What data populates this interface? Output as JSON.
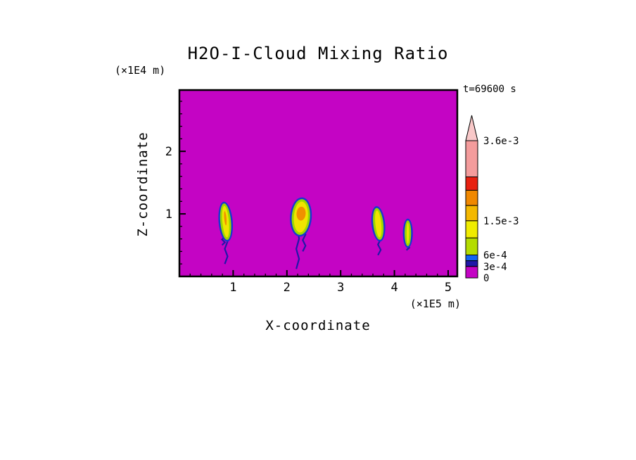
{
  "page_background": "#ffffff",
  "chart_data": {
    "type": "heatmap",
    "title": "H2O-I-Cloud Mixing Ratio",
    "time": "t=69600 s",
    "xlabel": "X-coordinate",
    "ylabel": "Z-coordinate",
    "x_units": "(×1E5 m)",
    "y_units": "(×1E4 m)",
    "xlim": [
      0,
      5.17
    ],
    "ylim": [
      0,
      2.98
    ],
    "x_ticks": [
      1,
      2,
      3,
      4,
      5
    ],
    "y_ticks": [
      1,
      2
    ],
    "x_minor_step": 0.2,
    "y_minor_step": 0.2,
    "background_value": 0,
    "background_color": "#c404c4",
    "feature_colors": {
      "outer": "#1838d0",
      "mid": "#9cd800",
      "core": "#f0e400",
      "hot": "#f09000",
      "tail": "#2018a8"
    },
    "features": [
      {
        "x": 0.86,
        "core_bottom": 0.6,
        "core_top": 1.15,
        "core_width": 0.16,
        "tilt": -5,
        "has_hot": true,
        "tails": [
          {
            "dx": 0.01,
            "bottom": 0.2
          },
          {
            "dx": -0.04,
            "bottom": 0.5
          }
        ]
      },
      {
        "x": 2.26,
        "core_bottom": 0.68,
        "core_top": 1.22,
        "core_width": 0.3,
        "tilt": 4,
        "has_hot": true,
        "tails": [
          {
            "dx": -0.06,
            "bottom": 0.12
          },
          {
            "dx": 0.06,
            "bottom": 0.4
          }
        ]
      },
      {
        "x": 3.7,
        "core_bottom": 0.6,
        "core_top": 1.08,
        "core_width": 0.15,
        "tilt": -6,
        "has_hot": false,
        "tails": [
          {
            "dx": 0.02,
            "bottom": 0.34
          }
        ]
      },
      {
        "x": 4.25,
        "core_bottom": 0.5,
        "core_top": 0.88,
        "core_width": 0.08,
        "tilt": 0,
        "has_hot": false,
        "tails": [
          {
            "dx": 0.0,
            "bottom": 0.42
          }
        ]
      }
    ],
    "colorbar": {
      "max_value": 0.0036,
      "arrow_color": "#f8c8c8",
      "labels": [
        {
          "value": 0.0036,
          "text": "3.6e-3"
        },
        {
          "value": 0.0015,
          "text": "1.5e-3"
        },
        {
          "value": 0.0006,
          "text": "6e-4"
        },
        {
          "value": 0.0003,
          "text": "3e-4"
        },
        {
          "value": 0,
          "text": "0"
        }
      ],
      "segments": [
        {
          "from": 0,
          "to": 0.0003,
          "color": "#c404c4"
        },
        {
          "from": 0.0003,
          "to": 0.00045,
          "color": "#2018a8"
        },
        {
          "from": 0.00045,
          "to": 0.0006,
          "color": "#1464f0"
        },
        {
          "from": 0.0006,
          "to": 0.00105,
          "color": "#b4dc00"
        },
        {
          "from": 0.00105,
          "to": 0.0015,
          "color": "#f0ec00"
        },
        {
          "from": 0.0015,
          "to": 0.0019,
          "color": "#f4b800"
        },
        {
          "from": 0.0019,
          "to": 0.0023,
          "color": "#f08800"
        },
        {
          "from": 0.0023,
          "to": 0.00265,
          "color": "#e82010"
        },
        {
          "from": 0.00265,
          "to": 0.0036,
          "color": "#f49c9c"
        }
      ]
    }
  }
}
